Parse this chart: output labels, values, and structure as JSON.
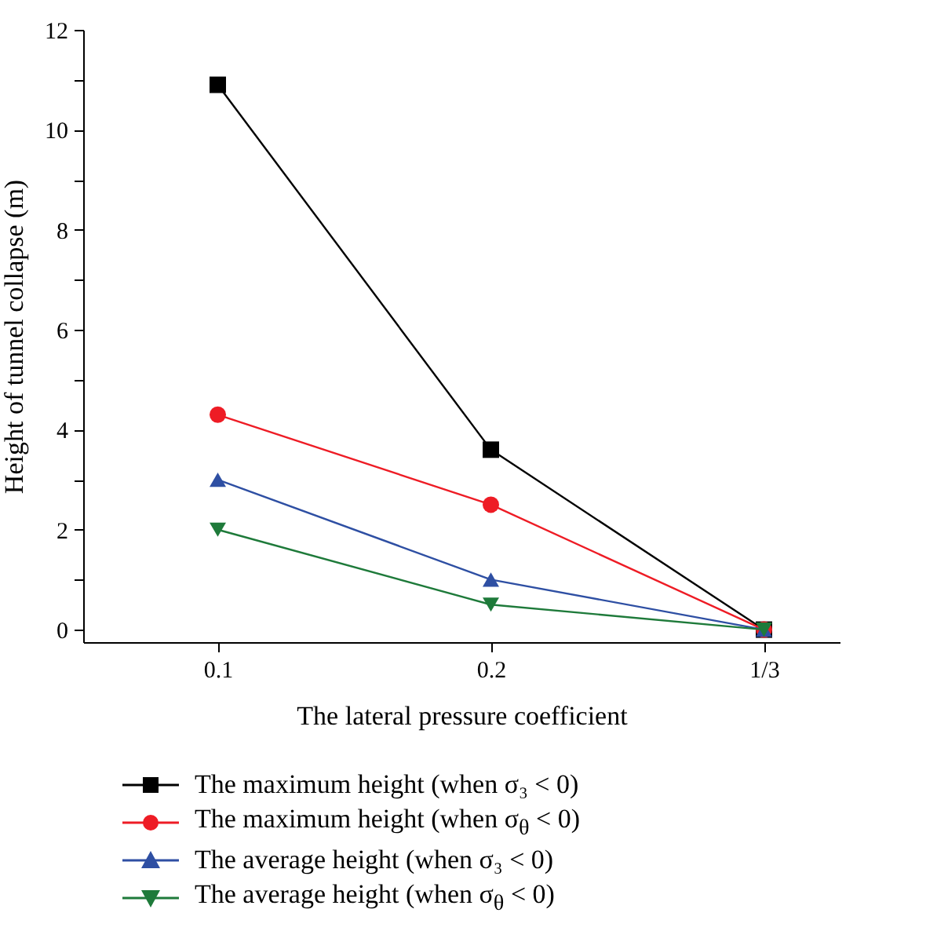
{
  "chart_data": {
    "type": "line",
    "xlabel": "The lateral pressure coefficient",
    "ylabel": "Height of tunnel collapse (m)",
    "categories": [
      "0.1",
      "0.2",
      "1/3"
    ],
    "ylim": [
      -0.25,
      12
    ],
    "yticks": [
      0,
      {
        "value": 1,
        "label": null
      },
      2,
      {
        "value": 3,
        "label": null
      },
      4,
      {
        "value": 5,
        "label": null
      },
      6,
      {
        "value": 7,
        "label": null
      },
      8,
      {
        "value": 9,
        "label": null
      },
      10,
      {
        "value": 11,
        "label": null
      },
      12
    ],
    "legend": "bottom",
    "series": [
      {
        "name": "The maximum height (when σ₃ < 0)",
        "color": "#000000",
        "marker": "square",
        "values": [
          10.9,
          3.6,
          0
        ]
      },
      {
        "name": "The maximum height (when σ$_{θ}$ < 0)",
        "color": "#ee1c25",
        "marker": "circle",
        "values": [
          4.3,
          2.5,
          0
        ]
      },
      {
        "name": "The average height (when σ₃ < 0)",
        "color": "#2e4fa3",
        "marker": "triangle",
        "values": [
          3.0,
          1.0,
          0
        ]
      },
      {
        "name": "The average height (when σ$_{θ}$ < 0)",
        "color": "#1e7a3a",
        "marker": "triangle-down",
        "values": [
          2.0,
          0.5,
          0
        ]
      }
    ]
  }
}
